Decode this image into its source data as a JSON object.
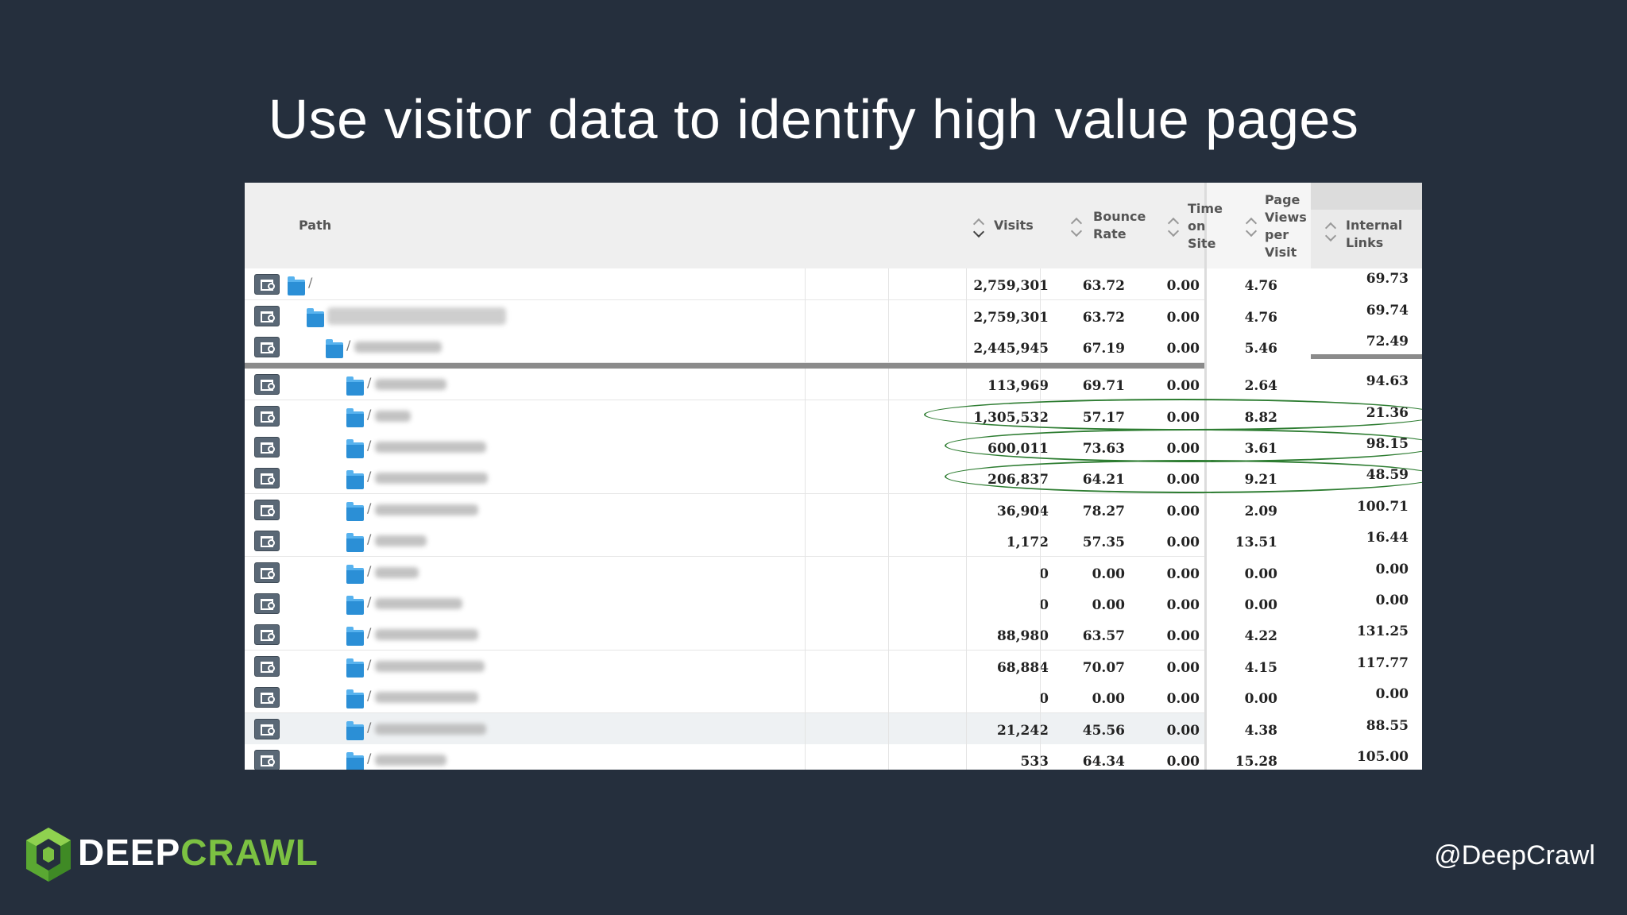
{
  "slide": {
    "title": "Use visitor data to identify high value pages",
    "handle": "@DeepCrawl",
    "logo": {
      "word_a": "DEEP",
      "word_b": "CRAWL",
      "color_a": "#ffffff",
      "color_b": "#7cc142"
    }
  },
  "table": {
    "headers": {
      "path": "Path",
      "visits": "Visits",
      "bounce_rate": [
        "Bounce",
        "Rate"
      ],
      "time_on_site": [
        "Time",
        "on",
        "Site"
      ],
      "page_views": [
        "Page",
        "Views",
        "per",
        "Visit"
      ],
      "internal_links": [
        "Internal",
        "Links"
      ]
    },
    "rows": [
      {
        "path": "/",
        "visits": "2,759,301",
        "bounce": "63.72",
        "time": "0.00",
        "pv": "4.76",
        "links": "69.73"
      },
      {
        "path": "",
        "visits": "2,759,301",
        "bounce": "63.72",
        "time": "0.00",
        "pv": "4.76",
        "links": "69.74"
      },
      {
        "path": "/",
        "visits": "2,445,945",
        "bounce": "67.19",
        "time": "0.00",
        "pv": "5.46",
        "links": "72.49"
      },
      {
        "path": "/",
        "visits": "113,969",
        "bounce": "69.71",
        "time": "0.00",
        "pv": "2.64",
        "links": "94.63"
      },
      {
        "path": "/",
        "visits": "1,305,532",
        "bounce": "57.17",
        "time": "0.00",
        "pv": "8.82",
        "links": "21.36"
      },
      {
        "path": "/",
        "visits": "600,011",
        "bounce": "73.63",
        "time": "0.00",
        "pv": "3.61",
        "links": "98.15"
      },
      {
        "path": "/",
        "visits": "206,837",
        "bounce": "64.21",
        "time": "0.00",
        "pv": "9.21",
        "links": "48.59"
      },
      {
        "path": "/",
        "visits": "36,904",
        "bounce": "78.27",
        "time": "0.00",
        "pv": "2.09",
        "links": "100.71"
      },
      {
        "path": "/",
        "visits": "1,172",
        "bounce": "57.35",
        "time": "0.00",
        "pv": "13.51",
        "links": "16.44"
      },
      {
        "path": "/",
        "visits": "0",
        "bounce": "0.00",
        "time": "0.00",
        "pv": "0.00",
        "links": "0.00"
      },
      {
        "path": "/",
        "visits": "0",
        "bounce": "0.00",
        "time": "0.00",
        "pv": "0.00",
        "links": "0.00"
      },
      {
        "path": "/",
        "visits": "88,980",
        "bounce": "63.57",
        "time": "0.00",
        "pv": "4.22",
        "links": "131.25"
      },
      {
        "path": "/",
        "visits": "68,884",
        "bounce": "70.07",
        "time": "0.00",
        "pv": "4.15",
        "links": "117.77"
      },
      {
        "path": "/",
        "visits": "0",
        "bounce": "0.00",
        "time": "0.00",
        "pv": "0.00",
        "links": "0.00"
      },
      {
        "path": "/",
        "visits": "21,242",
        "bounce": "45.56",
        "time": "0.00",
        "pv": "4.38",
        "links": "88.55"
      },
      {
        "path": "/",
        "visits": "533",
        "bounce": "64.34",
        "time": "0.00",
        "pv": "15.28",
        "links": "105.00"
      }
    ],
    "highlighted_rows": [
      4,
      5,
      6
    ],
    "highlight_color": "#2e7d32"
  }
}
